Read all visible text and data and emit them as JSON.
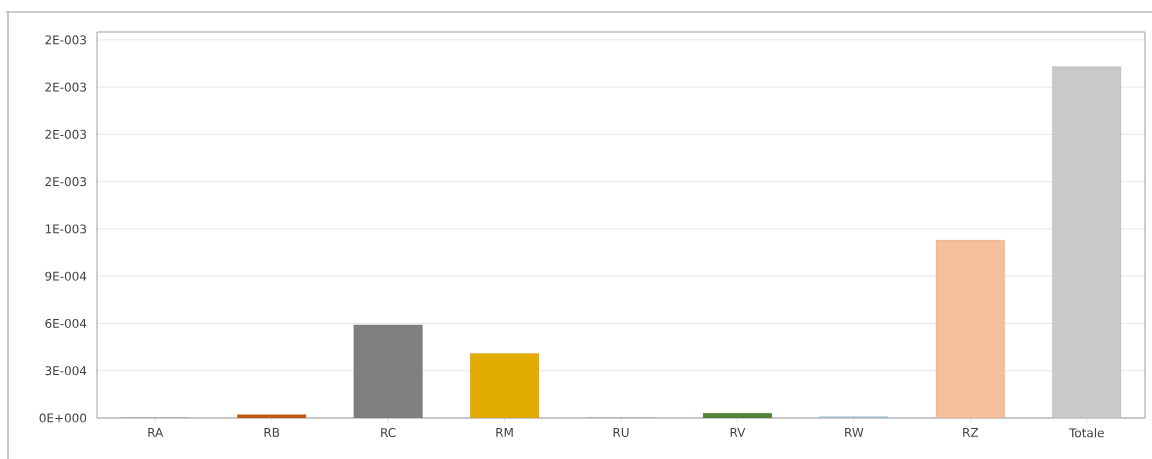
{
  "chart_data": {
    "type": "bar",
    "categories": [
      "RA",
      "RB",
      "RC",
      "RM",
      "RU",
      "RV",
      "RW",
      "RZ",
      "Totale"
    ],
    "values": [
      0,
      2e-05,
      0.00059,
      0.00041,
      0,
      3e-05,
      1e-05,
      0.00113,
      0.00223
    ],
    "colors": [
      "#4472c4",
      "#c55a11",
      "#7f7f7f",
      "#e2ac00",
      "#5b9bd5",
      "#548235",
      "#a9c4d8",
      "#f4c09a",
      "#c9c9c9"
    ],
    "ylim": [
      0,
      0.00245
    ],
    "yticks": [
      {
        "value": 0,
        "label": "0E+000"
      },
      {
        "value": 0.0003,
        "label": "3E-004"
      },
      {
        "value": 0.0006,
        "label": "6E-004"
      },
      {
        "value": 0.0009,
        "label": "9E-004"
      },
      {
        "value": 0.0012,
        "label": "1E-003"
      },
      {
        "value": 0.0015,
        "label": "2E-003"
      },
      {
        "value": 0.0018,
        "label": "2E-003"
      },
      {
        "value": 0.0021,
        "label": "2E-003"
      },
      {
        "value": 0.0024,
        "label": "2E-003"
      }
    ],
    "grid": "y"
  }
}
